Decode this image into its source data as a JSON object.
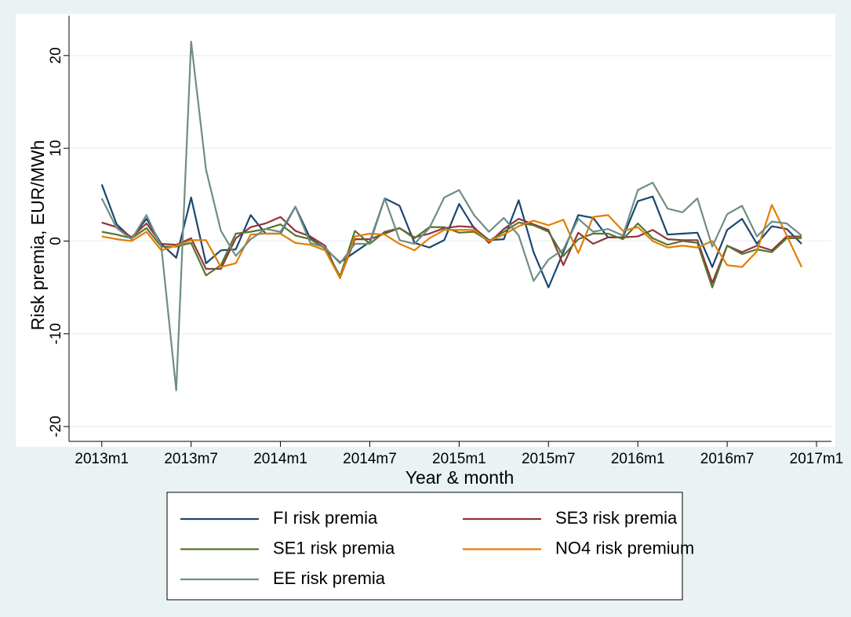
{
  "chart_data": {
    "type": "line",
    "x_label": "Year & month",
    "y_label": "Risk premia, EUR/MWh",
    "x": [
      0,
      1,
      2,
      3,
      4,
      5,
      6,
      7,
      8,
      9,
      10,
      11,
      12,
      13,
      14,
      15,
      16,
      17,
      18,
      19,
      20,
      21,
      22,
      23,
      24,
      25,
      26,
      27,
      28,
      29,
      30,
      31,
      32,
      33,
      34,
      35,
      36,
      37,
      38,
      39,
      40,
      41,
      42,
      43,
      44,
      45,
      46,
      47
    ],
    "xlim": [
      -2.2,
      49
    ],
    "xticks": [
      {
        "value": 0,
        "label": "2013m1"
      },
      {
        "value": 6,
        "label": "2013m7"
      },
      {
        "value": 12,
        "label": "2014m1"
      },
      {
        "value": 18,
        "label": "2014m7"
      },
      {
        "value": 24,
        "label": "2015m1"
      },
      {
        "value": 30,
        "label": "2015m7"
      },
      {
        "value": 36,
        "label": "2016m1"
      },
      {
        "value": 42,
        "label": "2016m7"
      },
      {
        "value": 48,
        "label": "2017m1"
      }
    ],
    "ylim": [
      -21.6,
      24.3
    ],
    "yticks": [
      -20,
      -10,
      0,
      10,
      20
    ],
    "grid": true,
    "legend": "bottom",
    "series": [
      {
        "name": "FI risk premia",
        "color": "#1a476f",
        "values": [
          6.1,
          1.8,
          0.3,
          2.4,
          -0.3,
          -1.8,
          4.7,
          -2.4,
          -1.0,
          -0.9,
          2.8,
          0.8,
          0.8,
          3.7,
          0.3,
          -0.8,
          -2.3,
          -1.2,
          -0.1,
          4.6,
          3.8,
          -0.2,
          -0.7,
          0.1,
          4.0,
          1.4,
          0.1,
          0.2,
          4.4,
          -1.2,
          -5.0,
          -1.2,
          2.8,
          2.5,
          0.4,
          0.4,
          4.3,
          4.8,
          0.7,
          0.8,
          0.9,
          -2.8,
          1.2,
          2.4,
          -0.3,
          1.6,
          1.3,
          -0.3
        ]
      },
      {
        "name": "SE3 risk premia",
        "color": "#90353b",
        "values": [
          2.0,
          1.5,
          0.4,
          1.9,
          -0.3,
          -0.4,
          0.3,
          -3.0,
          -3.0,
          0.3,
          1.5,
          1.9,
          2.6,
          1.1,
          0.5,
          -0.5,
          -4.0,
          0.2,
          0.2,
          0.8,
          1.4,
          0.4,
          0.8,
          1.4,
          1.6,
          1.5,
          -0.2,
          1.3,
          2.4,
          1.8,
          1.2,
          -2.6,
          0.9,
          -0.3,
          0.4,
          0.4,
          0.5,
          1.2,
          0.2,
          0.1,
          0.1,
          -4.5,
          -0.5,
          -1.2,
          -0.5,
          -1.0,
          0.5,
          0.5
        ]
      },
      {
        "name": "SE1 risk premia",
        "color": "#55752f",
        "values": [
          1.0,
          0.7,
          0.3,
          1.4,
          -0.6,
          -0.6,
          -0.2,
          -3.7,
          -2.6,
          0.8,
          1.0,
          1.3,
          1.8,
          0.6,
          0.2,
          -0.8,
          -3.8,
          1.1,
          -0.3,
          1.0,
          1.4,
          0.3,
          1.5,
          1.5,
          0.9,
          1.0,
          0.0,
          1.0,
          2.0,
          1.7,
          1.0,
          -1.6,
          0.2,
          0.8,
          0.8,
          0.2,
          1.9,
          0.3,
          -0.4,
          0.0,
          -0.2,
          -5.0,
          -0.5,
          -1.4,
          -0.9,
          -1.2,
          0.3,
          0.3
        ]
      },
      {
        "name": "NO4 risk premium",
        "color": "#e37e00",
        "values": [
          0.5,
          0.2,
          0.0,
          1.0,
          -1.0,
          -0.5,
          0.1,
          0.1,
          -2.8,
          -2.4,
          0.7,
          0.8,
          0.8,
          -0.2,
          -0.4,
          -1.0,
          -4.0,
          0.5,
          0.8,
          0.7,
          -0.3,
          -1.0,
          0.3,
          1.2,
          1.2,
          1.2,
          0.0,
          0.7,
          1.6,
          2.2,
          1.7,
          2.3,
          -1.3,
          2.6,
          2.8,
          1.1,
          1.5,
          0.0,
          -0.7,
          -0.5,
          -0.7,
          0.0,
          -2.6,
          -2.8,
          -1.1,
          3.9,
          0.6,
          -2.8
        ]
      },
      {
        "name": "EE risk premia",
        "color": "#6e8e84",
        "values": [
          4.6,
          1.4,
          0.2,
          2.8,
          -0.6,
          -16.1,
          21.5,
          7.7,
          1.1,
          -1.6,
          0.2,
          1.3,
          1.0,
          3.7,
          -0.2,
          -0.7,
          -2.4,
          -0.3,
          -0.3,
          4.6,
          0.1,
          -0.3,
          1.4,
          4.7,
          5.5,
          2.8,
          1.0,
          2.5,
          0.6,
          -4.3,
          -2.0,
          -0.9,
          2.4,
          1.0,
          1.3,
          0.6,
          5.5,
          6.3,
          3.5,
          3.1,
          4.6,
          -0.6,
          2.9,
          3.8,
          0.5,
          2.1,
          1.9,
          0.6
        ]
      }
    ]
  }
}
